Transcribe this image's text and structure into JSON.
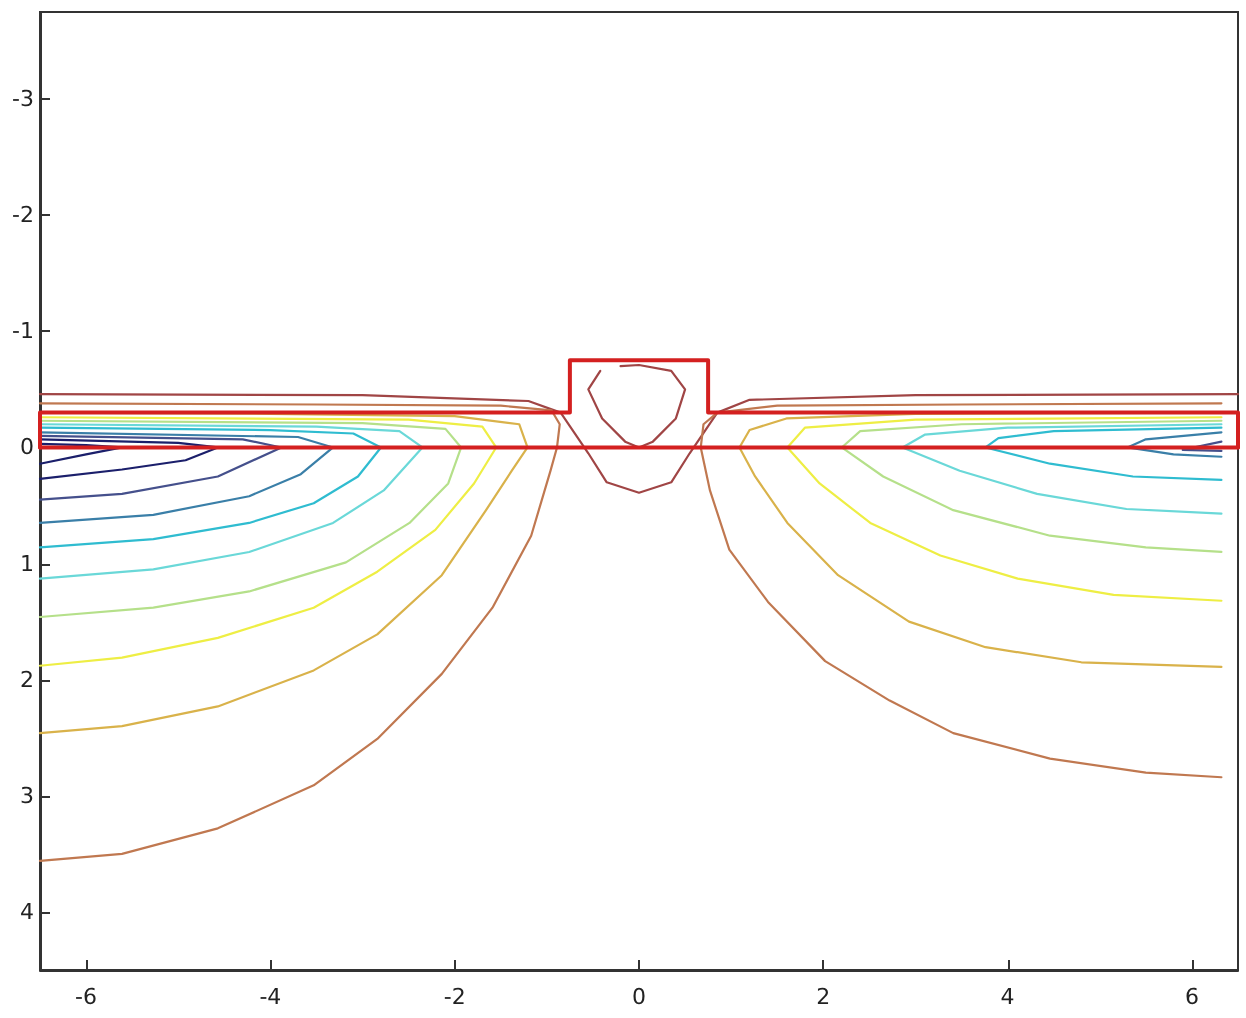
{
  "chart_data": {
    "type": "line",
    "xlim": [
      -6.5,
      6.5
    ],
    "xticks": [
      -6,
      -4,
      -2,
      0,
      2,
      4,
      6
    ],
    "ylim": [
      4.5,
      -3.75
    ],
    "yticks": [
      -3,
      -2,
      -1,
      0,
      1,
      2,
      3,
      4
    ],
    "grid": false,
    "marker": "none",
    "line_style": "solid",
    "series": [
      {
        "color": "#d42020",
        "x": [
          -6.5,
          -6.5,
          -0.75,
          -0.75,
          0.75,
          0.75,
          6.5,
          6.5
        ],
        "values": [
          0,
          -0.3,
          -0.3,
          -0.75,
          -0.75,
          -0.3,
          -0.3,
          0
        ]
      },
      {
        "color": "#d42020",
        "x": [
          -6.5,
          6.5
        ],
        "values": [
          0,
          0
        ]
      },
      {
        "color": "#a04545",
        "x": [
          -6.5,
          -3,
          -1.2,
          -0.85,
          -0.55,
          -0.35,
          0,
          0.35,
          0.55,
          0.85,
          1.2,
          3,
          6.5
        ],
        "values": [
          -0.46,
          -0.45,
          -0.4,
          -0.3,
          0.05,
          0.3,
          0.39,
          0.3,
          0.05,
          -0.3,
          -0.41,
          -0.45,
          -0.46
        ]
      },
      {
        "color": "#a04545",
        "x": [
          -0.2,
          0,
          0.35,
          0.5,
          0.4,
          0.15,
          0,
          -0.15,
          -0.4,
          -0.55,
          -0.42
        ],
        "values": [
          -0.7,
          -0.71,
          -0.66,
          -0.5,
          -0.25,
          -0.05,
          0,
          -0.05,
          -0.25,
          -0.5,
          -0.66
        ]
      },
      {
        "color": "#c07850",
        "x": [
          -6.5,
          -5.61,
          -4.57,
          -3.53,
          -2.84,
          -2.14,
          -1.59,
          -1.17,
          -0.96,
          -0.89,
          -0.86,
          -0.95,
          -1.5,
          -3.5,
          -6.5
        ],
        "values": [
          3.56,
          3.5,
          3.28,
          2.91,
          2.51,
          1.95,
          1.38,
          0.76,
          0.2,
          0,
          -0.2,
          -0.32,
          -0.36,
          -0.37,
          -0.38
        ]
      },
      {
        "color": "#d9b24a",
        "x": [
          -6.5,
          -5.61,
          -4.57,
          -3.53,
          -2.84,
          -2.14,
          -1.66,
          -1.38,
          -1.21,
          -1.3,
          -2,
          -4,
          -6.5
        ],
        "values": [
          2.46,
          2.4,
          2.23,
          1.92,
          1.61,
          1.1,
          0.54,
          0.2,
          0,
          -0.2,
          -0.27,
          -0.29,
          -0.3
        ]
      },
      {
        "color": "#eeee44",
        "x": [
          -6.5,
          -5.61,
          -4.57,
          -3.53,
          -2.84,
          -2.21,
          -1.79,
          -1.55,
          -1.7,
          -2.5,
          -6.5
        ],
        "values": [
          1.88,
          1.81,
          1.64,
          1.38,
          1.07,
          0.71,
          0.31,
          0,
          -0.18,
          -0.24,
          -0.26
        ]
      },
      {
        "color": "#b5e08a",
        "x": [
          -6.5,
          -5.27,
          -4.23,
          -3.18,
          -2.49,
          -2.07,
          -1.93,
          -2.1,
          -3,
          -6.5
        ],
        "values": [
          1.46,
          1.38,
          1.24,
          0.99,
          0.65,
          0.31,
          0,
          -0.16,
          -0.21,
          -0.23
        ]
      },
      {
        "color": "#6ad8d8",
        "x": [
          -6.5,
          -5.27,
          -4.23,
          -3.32,
          -2.77,
          -2.35,
          -2.6,
          -3.5,
          -6.5
        ],
        "values": [
          1.13,
          1.05,
          0.9,
          0.65,
          0.37,
          0,
          -0.14,
          -0.18,
          -0.2
        ]
      },
      {
        "color": "#2fbcd0",
        "x": [
          -6.5,
          -5.27,
          -4.23,
          -3.53,
          -3.05,
          -2.8,
          -3.1,
          -4,
          -6.5
        ],
        "values": [
          0.86,
          0.79,
          0.65,
          0.48,
          0.25,
          0,
          -0.12,
          -0.15,
          -0.17
        ]
      },
      {
        "color": "#3a7fa8",
        "x": [
          -6.5,
          -5.27,
          -4.23,
          -3.67,
          -3.32,
          -3.7,
          -6.5
        ],
        "values": [
          0.65,
          0.58,
          0.42,
          0.23,
          0,
          -0.09,
          -0.13
        ]
      },
      {
        "color": "#45508c",
        "x": [
          -6.5,
          -5.61,
          -4.57,
          -3.88,
          -4.3,
          -6.5
        ],
        "values": [
          0.45,
          0.4,
          0.25,
          0,
          -0.07,
          -0.1
        ]
      },
      {
        "color": "#1b1f6b",
        "x": [
          -6.5,
          -5.61,
          -4.92,
          -4.57,
          -5,
          -6.5
        ],
        "values": [
          0.27,
          0.19,
          0.11,
          0,
          -0.04,
          -0.07
        ]
      },
      {
        "color": "#1b1f6b",
        "x": [
          -6.5,
          -6,
          -5.61,
          -6,
          -6.5
        ],
        "values": [
          0.14,
          0.06,
          0,
          -0.02,
          -0.03
        ]
      },
      {
        "color": "#c07850",
        "x": [
          6.32,
          3.5,
          1.5,
          0.85,
          0.7,
          0.67,
          0.77,
          0.98,
          1.4,
          2.02,
          2.72,
          3.41,
          4.46,
          5.5,
          6.32
        ],
        "values": [
          -0.38,
          -0.37,
          -0.36,
          -0.3,
          -0.2,
          0,
          0.37,
          0.88,
          1.33,
          1.84,
          2.18,
          2.46,
          2.68,
          2.8,
          2.84
        ]
      },
      {
        "color": "#d9b24a",
        "x": [
          6.32,
          3,
          1.6,
          1.2,
          1.09,
          1.26,
          1.61,
          2.16,
          2.93,
          3.76,
          4.8,
          6.32
        ],
        "values": [
          -0.3,
          -0.29,
          -0.25,
          -0.15,
          0,
          0.25,
          0.65,
          1.1,
          1.5,
          1.72,
          1.85,
          1.89
        ]
      },
      {
        "color": "#eeee44",
        "x": [
          6.32,
          3,
          1.8,
          1.61,
          1.96,
          2.51,
          3.27,
          4.11,
          5.15,
          6.32
        ],
        "values": [
          -0.26,
          -0.24,
          -0.17,
          0,
          0.31,
          0.65,
          0.93,
          1.13,
          1.27,
          1.32
        ]
      },
      {
        "color": "#b5e08a",
        "x": [
          6.32,
          3.5,
          2.4,
          2.2,
          2.65,
          3.41,
          4.46,
          5.5,
          6.32
        ],
        "values": [
          -0.23,
          -0.2,
          -0.14,
          0,
          0.25,
          0.54,
          0.76,
          0.86,
          0.9
        ]
      },
      {
        "color": "#6ad8d8",
        "x": [
          6.32,
          4,
          3.1,
          2.86,
          3.48,
          4.32,
          5.29,
          6.32
        ],
        "values": [
          -0.2,
          -0.17,
          -0.11,
          0,
          0.2,
          0.4,
          0.53,
          0.57
        ]
      },
      {
        "color": "#2fbcd0",
        "x": [
          6.32,
          4.5,
          3.9,
          3.76,
          4.46,
          5.36,
          6.32
        ],
        "values": [
          -0.17,
          -0.14,
          -0.08,
          0,
          0.14,
          0.25,
          0.28
        ]
      },
      {
        "color": "#3a7fa8",
        "x": [
          6.32,
          5.5,
          5.3,
          5.8,
          6.32
        ],
        "values": [
          -0.13,
          -0.07,
          0,
          0.06,
          0.08
        ]
      },
      {
        "color": "#45508c",
        "x": [
          6.32,
          5.9,
          6.32
        ],
        "values": [
          -0.05,
          0.02,
          0.03
        ]
      }
    ]
  }
}
